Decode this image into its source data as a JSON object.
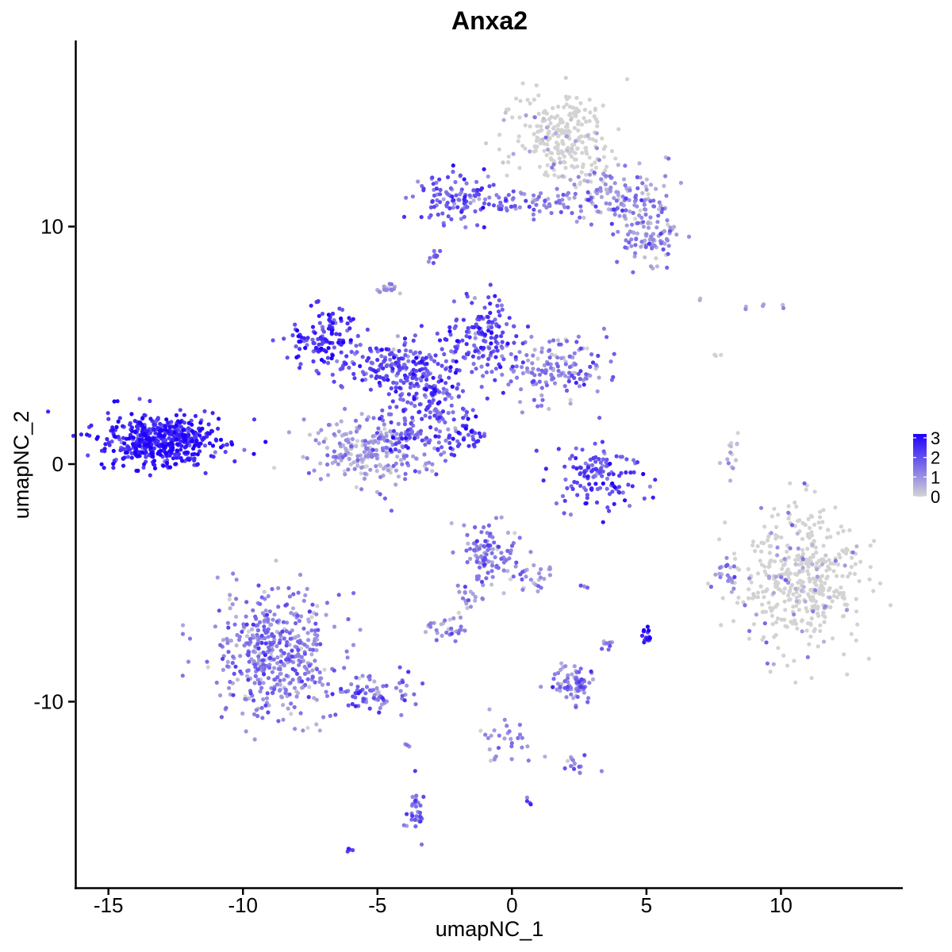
{
  "chart_data": {
    "type": "scatter",
    "title": "Anxa2",
    "xlabel": "umapNC_1",
    "ylabel": "umapNC_2",
    "xlim": [
      -16.2,
      14.5
    ],
    "ylim": [
      -17.8,
      17.8
    ],
    "x_ticks": [
      -15,
      -10,
      -5,
      0,
      5,
      10
    ],
    "x_tick_labels": [
      "-15",
      "-10",
      "-5",
      "0",
      "5",
      "10"
    ],
    "y_ticks": [
      -10,
      0,
      10
    ],
    "y_tick_labels": [
      "-10",
      "0",
      "10"
    ],
    "grid": false,
    "legend_position": "right",
    "color_scale": {
      "low_color": "#d3d3d3",
      "high_color": "#1f00ff",
      "min": 0,
      "max": 3.2,
      "breaks": [
        0,
        1,
        2,
        3
      ],
      "break_labels": [
        "0",
        "1",
        "2",
        "3"
      ]
    },
    "clusters": [
      {
        "cx": -13.0,
        "cy": 1.0,
        "sx": 1.1,
        "sy": 0.55,
        "n": 500,
        "expr": 2.6
      },
      {
        "cx": 1.8,
        "cy": 13.8,
        "sx": 1.0,
        "sy": 1.0,
        "n": 260,
        "expr": 0.15
      },
      {
        "cx": 4.2,
        "cy": 11.0,
        "sx": 0.9,
        "sy": 0.8,
        "n": 150,
        "expr": 0.9
      },
      {
        "cx": 5.2,
        "cy": 9.4,
        "sx": 0.6,
        "sy": 0.5,
        "n": 70,
        "expr": 0.9
      },
      {
        "cx": -2.2,
        "cy": 11.2,
        "sx": 0.8,
        "sy": 0.5,
        "n": 100,
        "expr": 1.9
      },
      {
        "cx": 0.6,
        "cy": 11.0,
        "sx": 1.4,
        "sy": 0.3,
        "n": 80,
        "expr": 1.4
      },
      {
        "cx": -2.9,
        "cy": 8.7,
        "sx": 0.15,
        "sy": 0.15,
        "n": 10,
        "expr": 1.6
      },
      {
        "cx": -4.6,
        "cy": 7.4,
        "sx": 0.2,
        "sy": 0.15,
        "n": 18,
        "expr": 0.8
      },
      {
        "cx": -7.0,
        "cy": 5.4,
        "sx": 0.6,
        "sy": 0.6,
        "n": 110,
        "expr": 2.4
      },
      {
        "cx": -4.5,
        "cy": 4.2,
        "sx": 1.2,
        "sy": 0.6,
        "n": 180,
        "expr": 2.0
      },
      {
        "cx": -1.0,
        "cy": 5.5,
        "sx": 0.7,
        "sy": 0.8,
        "n": 130,
        "expr": 1.9
      },
      {
        "cx": 1.6,
        "cy": 4.0,
        "sx": 1.0,
        "sy": 0.6,
        "n": 150,
        "expr": 1.3
      },
      {
        "cx": -3.0,
        "cy": 3.0,
        "sx": 0.9,
        "sy": 1.0,
        "n": 150,
        "expr": 1.9
      },
      {
        "cx": -5.5,
        "cy": 0.5,
        "sx": 1.0,
        "sy": 0.7,
        "n": 200,
        "expr": 0.8
      },
      {
        "cx": -3.8,
        "cy": 1.2,
        "sx": 0.7,
        "sy": 0.8,
        "n": 100,
        "expr": 1.7
      },
      {
        "cx": -1.8,
        "cy": 1.2,
        "sx": 0.5,
        "sy": 0.4,
        "n": 40,
        "expr": 2.2
      },
      {
        "cx": 3.2,
        "cy": -0.6,
        "sx": 0.8,
        "sy": 0.6,
        "n": 130,
        "expr": 2.0
      },
      {
        "cx": 10.7,
        "cy": -4.7,
        "sx": 1.1,
        "sy": 1.4,
        "n": 450,
        "expr": 0.15
      },
      {
        "cx": 8.2,
        "cy": 0.4,
        "sx": 0.2,
        "sy": 0.5,
        "n": 15,
        "expr": 0.6
      },
      {
        "cx": -1.0,
        "cy": -3.7,
        "sx": 0.5,
        "sy": 0.6,
        "n": 100,
        "expr": 1.3
      },
      {
        "cx": 0.7,
        "cy": -4.7,
        "sx": 0.5,
        "sy": 0.5,
        "n": 30,
        "expr": 1.1
      },
      {
        "cx": -1.6,
        "cy": -5.5,
        "sx": 0.3,
        "sy": 0.4,
        "n": 20,
        "expr": 1.1
      },
      {
        "cx": -8.9,
        "cy": -8.0,
        "sx": 1.1,
        "sy": 1.4,
        "n": 450,
        "expr": 1.2
      },
      {
        "cx": -5.3,
        "cy": -9.6,
        "sx": 0.9,
        "sy": 0.5,
        "n": 80,
        "expr": 1.5
      },
      {
        "cx": -2.5,
        "cy": -6.9,
        "sx": 0.4,
        "sy": 0.25,
        "n": 30,
        "expr": 1.0
      },
      {
        "cx": 2.4,
        "cy": -9.2,
        "sx": 0.4,
        "sy": 0.4,
        "n": 70,
        "expr": 1.3
      },
      {
        "cx": 5.0,
        "cy": -7.2,
        "sx": 0.1,
        "sy": 0.15,
        "n": 15,
        "expr": 3.0
      },
      {
        "cx": -3.6,
        "cy": -14.6,
        "sx": 0.2,
        "sy": 0.6,
        "n": 30,
        "expr": 1.6
      },
      {
        "cx": -0.3,
        "cy": -11.6,
        "sx": 0.5,
        "sy": 0.5,
        "n": 30,
        "expr": 1.1
      },
      {
        "cx": 2.2,
        "cy": -12.6,
        "sx": 0.3,
        "sy": 0.2,
        "n": 15,
        "expr": 1.2
      },
      {
        "cx": 3.5,
        "cy": -7.7,
        "sx": 0.2,
        "sy": 0.2,
        "n": 10,
        "expr": 1.2
      },
      {
        "cx": 9.5,
        "cy": 6.7,
        "sx": 0.4,
        "sy": 0.2,
        "n": 6,
        "expr": 0.6
      },
      {
        "cx": 7.0,
        "cy": 6.9,
        "sx": 0.05,
        "sy": 0.05,
        "n": 2,
        "expr": 0.5
      },
      {
        "cx": 7.6,
        "cy": 4.7,
        "sx": 0.08,
        "sy": 0.1,
        "n": 3,
        "expr": 0.4
      },
      {
        "cx": -6.0,
        "cy": -16.2,
        "sx": 0.06,
        "sy": 0.06,
        "n": 5,
        "expr": 2.2
      },
      {
        "cx": 0.6,
        "cy": -14.2,
        "sx": 0.05,
        "sy": 0.05,
        "n": 4,
        "expr": 1.8
      },
      {
        "cx": 2.7,
        "cy": -5.2,
        "sx": 0.08,
        "sy": 0.05,
        "n": 3,
        "expr": 1.5
      },
      {
        "cx": 8.0,
        "cy": -4.6,
        "sx": 0.3,
        "sy": 0.3,
        "n": 20,
        "expr": 1.0
      },
      {
        "cx": -3.9,
        "cy": -11.8,
        "sx": 0.05,
        "sy": 0.05,
        "n": 3,
        "expr": 1.5
      }
    ]
  }
}
